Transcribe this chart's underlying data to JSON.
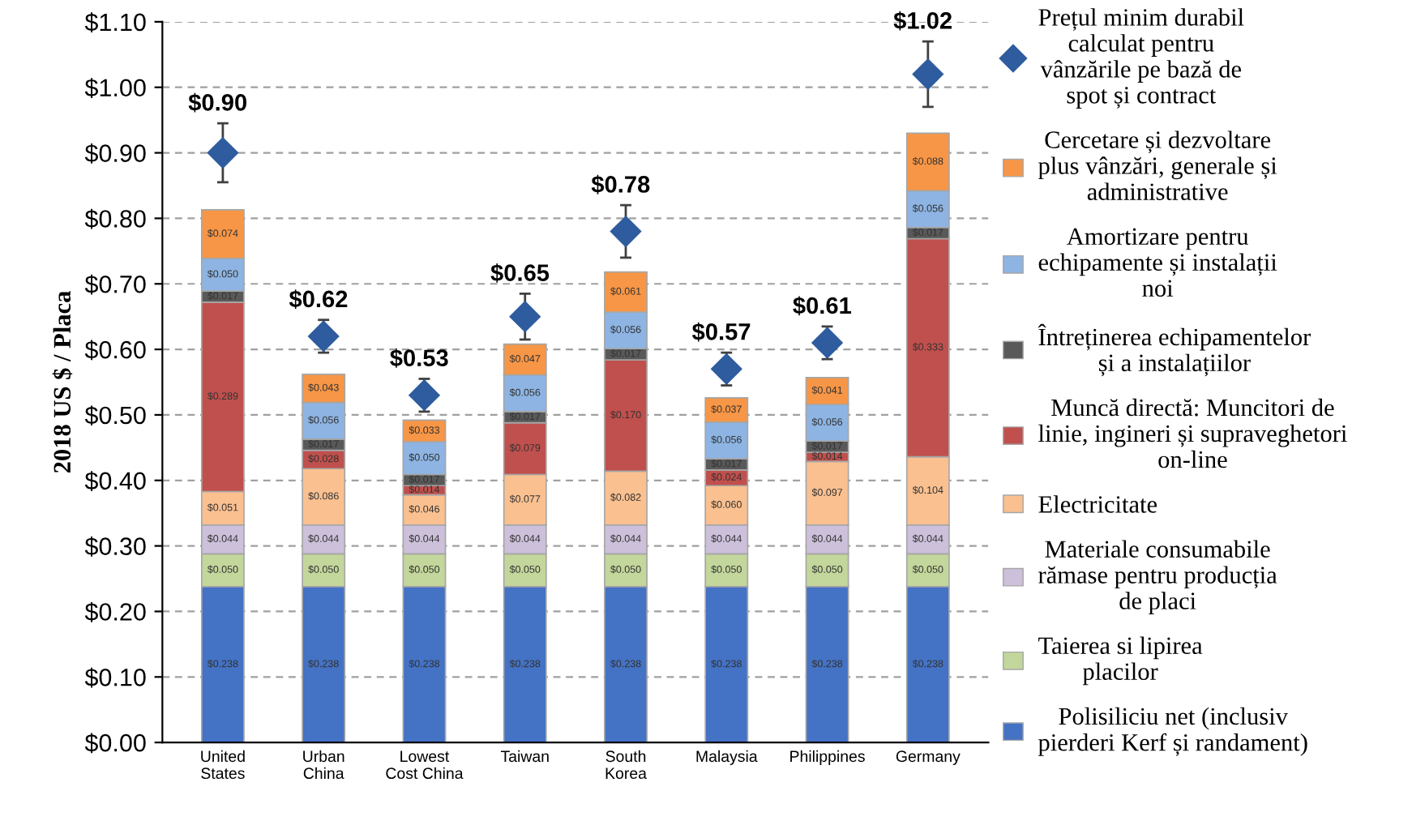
{
  "chart_data": {
    "type": "bar",
    "stacked": true,
    "ylabel": "2018 US $ / Placa",
    "categories": [
      "United\nStates",
      "Urban\nChina",
      "Lowest\nCost China",
      "Taiwan",
      "South\nKorea",
      "Malaysia",
      "Philippines",
      "Germany"
    ],
    "series": [
      {
        "name": "Polisiliciu net (inclusiv\npierderi Kerf și randament)",
        "color": "#4472c4",
        "values": [
          0.238,
          0.238,
          0.238,
          0.238,
          0.238,
          0.238,
          0.238,
          0.238
        ],
        "value_labels": [
          "$0.238",
          "$0.238",
          "$0.238",
          "$0.238",
          "$0.238",
          "$0.238",
          "$0.238",
          "$0.238"
        ]
      },
      {
        "name": "Taierea si lipirea\nplacilor",
        "color": "#c3d69b",
        "values": [
          0.05,
          0.05,
          0.05,
          0.05,
          0.05,
          0.05,
          0.05,
          0.05
        ],
        "value_labels": [
          "$0.050",
          "$0.050",
          "$0.050",
          "$0.050",
          "$0.050",
          "$0.050",
          "$0.050",
          "$0.050"
        ]
      },
      {
        "name": "Materiale consumabile\nrămase pentru producția\nde placi",
        "color": "#ccc0da",
        "values": [
          0.044,
          0.044,
          0.044,
          0.044,
          0.044,
          0.044,
          0.044,
          0.044
        ],
        "value_labels": [
          "$0.044",
          "$0.044",
          "$0.044",
          "$0.044",
          "$0.044",
          "$0.044",
          "$0.044",
          "$0.044"
        ]
      },
      {
        "name": "Electricitate",
        "color": "#fac090",
        "values": [
          0.051,
          0.086,
          0.046,
          0.077,
          0.082,
          0.06,
          0.097,
          0.104
        ],
        "value_labels": [
          "$0.051",
          "$0.086",
          "$0.046",
          "$0.077",
          "$0.082",
          "$0.060",
          "$0.097",
          "$0.104"
        ]
      },
      {
        "name": "Muncă directă: Muncitori de\nlinie, ingineri și supraveghetori\non-line",
        "color": "#c0504d",
        "values": [
          0.289,
          0.028,
          0.014,
          0.079,
          0.17,
          0.024,
          0.014,
          0.333
        ],
        "value_labels": [
          "$0.289",
          "$0.028",
          "$0.014",
          "$0.079",
          "$0.170",
          "$0.024",
          "$0.014",
          "$0.333"
        ]
      },
      {
        "name": "Întreținerea echipamentelor\nși a instalațiilor",
        "color": "#595959",
        "values": [
          0.017,
          0.017,
          0.017,
          0.017,
          0.017,
          0.017,
          0.017,
          0.017
        ],
        "value_labels": [
          "$0.017",
          "$0.017",
          "$0.017",
          "$0.017",
          "$0.017",
          "$0.017",
          "$0.017",
          "$0.017"
        ]
      },
      {
        "name": "Amortizare pentru\nechipamente și instalații\nnoi",
        "color": "#8db4e2",
        "values": [
          0.05,
          0.056,
          0.05,
          0.056,
          0.056,
          0.056,
          0.056,
          0.056
        ],
        "value_labels": [
          "$0.050",
          "$0.056",
          "$0.050",
          "$0.056",
          "$0.056",
          "$0.056",
          "$0.056",
          "$0.056"
        ]
      },
      {
        "name": "Cercetare și dezvoltare\nplus vânzări, generale și\nadministrative",
        "color": "#f79646",
        "values": [
          0.074,
          0.043,
          0.033,
          0.047,
          0.061,
          0.037,
          0.041,
          0.088
        ],
        "value_labels": [
          "$0.074",
          "$0.043",
          "$0.033",
          "$0.047",
          "$0.061",
          "$0.037",
          "$0.041",
          "$0.088"
        ]
      },
      {
        "name": "Prețul minim durabil\ncalculat pentru\nvânzările pe bază de\nspot și contract",
        "type": "scatter",
        "marker": "diamond",
        "color": "#2e5c9e",
        "values": [
          0.9,
          0.62,
          0.53,
          0.65,
          0.78,
          0.57,
          0.61,
          1.02
        ],
        "errors": [
          0.045,
          0.025,
          0.025,
          0.035,
          0.04,
          0.025,
          0.025,
          0.05
        ],
        "value_labels": [
          "$0.90",
          "$0.62",
          "$0.53",
          "$0.65",
          "$0.78",
          "$0.57",
          "$0.61",
          "$1.02"
        ]
      }
    ],
    "ylim": [
      0,
      1.1
    ],
    "yticks": [
      {
        "value": 0,
        "label": "$0.00"
      },
      {
        "value": 0.1,
        "label": "$0.10"
      },
      {
        "value": 0.2,
        "label": "$0.20"
      },
      {
        "value": 0.3,
        "label": "$0.30"
      },
      {
        "value": 0.4,
        "label": "$0.40"
      },
      {
        "value": 0.5,
        "label": "$0.50"
      },
      {
        "value": 0.6,
        "label": "$0.60"
      },
      {
        "value": 0.7,
        "label": "$0.70"
      },
      {
        "value": 0.8,
        "label": "$0.80"
      },
      {
        "value": 0.9,
        "label": "$0.90"
      },
      {
        "value": 1.0,
        "label": "$1.00"
      },
      {
        "value": 1.1,
        "label": "$1.10"
      }
    ],
    "grid": "y",
    "legend": "right"
  }
}
